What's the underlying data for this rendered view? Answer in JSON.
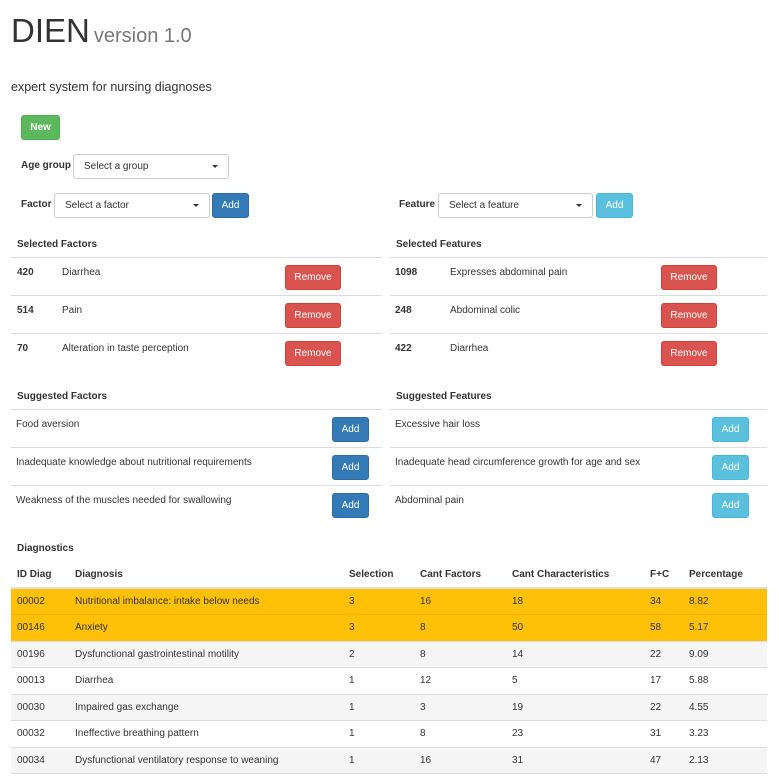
{
  "header": {
    "title": "DIEN",
    "version": "version 1.0",
    "subtitle": "expert system for nursing diagnoses"
  },
  "toolbar": {
    "new_label": "New"
  },
  "age_group": {
    "label": "Age group",
    "value": "Select a group"
  },
  "factor": {
    "label": "Factor",
    "value": "Select a factor",
    "add_label": "Add"
  },
  "feature": {
    "label": "Feature",
    "value": "Select a feature",
    "add_label": "Add"
  },
  "selected_factors": {
    "title": "Selected Factors",
    "items": [
      {
        "code": "420",
        "name": "Diarrhea",
        "action": "Remove"
      },
      {
        "code": "514",
        "name": "Pain",
        "action": "Remove"
      },
      {
        "code": "70",
        "name": "Alteration in taste perception",
        "action": "Remove"
      }
    ]
  },
  "selected_features": {
    "title": "Selected Features",
    "items": [
      {
        "code": "1098",
        "name": "Expresses abdominal pain",
        "action": "Remove"
      },
      {
        "code": "248",
        "name": "Abdominal colic",
        "action": "Remove"
      },
      {
        "code": "422",
        "name": "Diarrhea",
        "action": "Remove"
      }
    ]
  },
  "suggested_factors": {
    "title": "Suggested Factors",
    "items": [
      {
        "name": "Food aversion",
        "action": "Add"
      },
      {
        "name": "Inadequate knowledge about nutritional requirements",
        "action": "Add"
      },
      {
        "name": "Weakness of the muscles needed for swallowing",
        "action": "Add"
      }
    ]
  },
  "suggested_features": {
    "title": "Suggested Features",
    "items": [
      {
        "name": "Excessive hair loss",
        "action": "Add"
      },
      {
        "name": "Inadequate head circumference growth for age and sex",
        "action": "Add"
      },
      {
        "name": "Abdominal pain",
        "action": "Add"
      }
    ]
  },
  "diagnostics": {
    "title": "Diagnostics",
    "columns": [
      "ID Diag",
      "Diagnosis",
      "Selection",
      "Cant Factors",
      "Cant Characteristics",
      "F+C",
      "Percentage"
    ],
    "rows": [
      {
        "id": "00002",
        "diagnosis": "Nutritional imbalance: intake below needs",
        "selection": "3",
        "factors": "16",
        "characteristics": "18",
        "fc": "34",
        "percentage": "8.82",
        "highlight": true
      },
      {
        "id": "00146",
        "diagnosis": "Anxiety",
        "selection": "3",
        "factors": "8",
        "characteristics": "50",
        "fc": "58",
        "percentage": "5.17",
        "highlight": true
      },
      {
        "id": "00196",
        "diagnosis": "Dysfunctional gastrointestinal motility",
        "selection": "2",
        "factors": "8",
        "characteristics": "14",
        "fc": "22",
        "percentage": "9.09",
        "highlight": false
      },
      {
        "id": "00013",
        "diagnosis": "Diarrhea",
        "selection": "1",
        "factors": "12",
        "characteristics": "5",
        "fc": "17",
        "percentage": "5.88",
        "highlight": false
      },
      {
        "id": "00030",
        "diagnosis": "Impaired gas exchange",
        "selection": "1",
        "factors": "3",
        "characteristics": "19",
        "fc": "22",
        "percentage": "4.55",
        "highlight": false
      },
      {
        "id": "00032",
        "diagnosis": "Ineffective breathing pattern",
        "selection": "1",
        "factors": "8",
        "characteristics": "23",
        "fc": "31",
        "percentage": "3.23",
        "highlight": false
      },
      {
        "id": "00034",
        "diagnosis": "Dysfunctional ventilatory response to weaning",
        "selection": "1",
        "factors": "16",
        "characteristics": "31",
        "fc": "47",
        "percentage": "2.13",
        "highlight": false
      }
    ]
  },
  "colors": {
    "success": "#5cb85c",
    "primary": "#337ab7",
    "info": "#5bc0de",
    "danger": "#d9534f",
    "warning_row": "#ffc107"
  }
}
